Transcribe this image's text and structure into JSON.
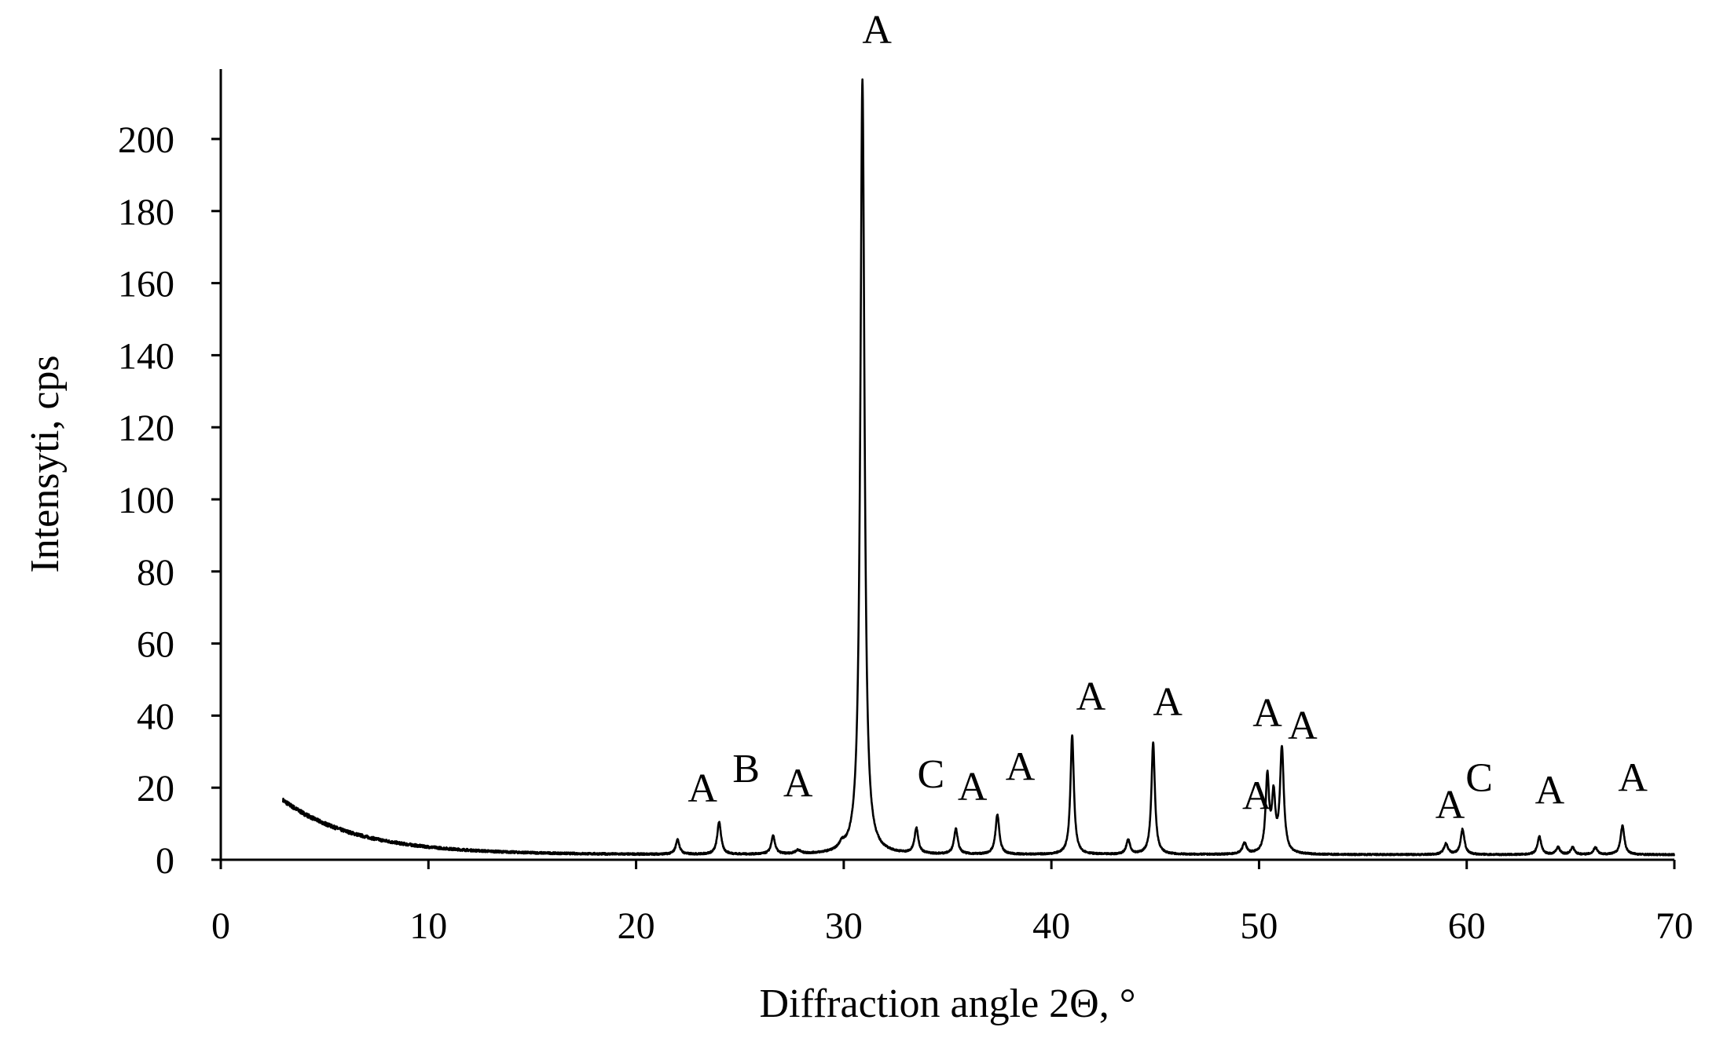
{
  "chart_data": {
    "type": "line",
    "title": "",
    "xlabel": "Diffraction angle 2Θ, °",
    "ylabel": "Intensyti, cps",
    "xlim": [
      0,
      70
    ],
    "ylim": [
      0,
      220
    ],
    "x_ticks": [
      0,
      10,
      20,
      30,
      40,
      50,
      60,
      70
    ],
    "y_ticks": [
      0,
      20,
      40,
      60,
      80,
      100,
      120,
      140,
      160,
      180,
      200
    ],
    "grid": false,
    "legend": "none",
    "line_color": "#000000",
    "background": {
      "start": 3,
      "end": 70,
      "start_value": 16.5,
      "decay_scale": 3.6,
      "floor": 1.4,
      "noise": 0.6
    },
    "peaks": [
      {
        "x": 22.0,
        "height": 4,
        "width": 0.11
      },
      {
        "x": 24.0,
        "height": 9,
        "width": 0.11
      },
      {
        "x": 26.6,
        "height": 5,
        "width": 0.11
      },
      {
        "x": 27.8,
        "height": 1,
        "width": 0.15
      },
      {
        "x": 29.9,
        "height": 1.5,
        "width": 0.15
      },
      {
        "x": 30.9,
        "height": 215,
        "width": 0.12
      },
      {
        "x": 33.5,
        "height": 7,
        "width": 0.11
      },
      {
        "x": 35.4,
        "height": 7,
        "width": 0.11
      },
      {
        "x": 37.4,
        "height": 11,
        "width": 0.11
      },
      {
        "x": 41.0,
        "height": 33,
        "width": 0.1
      },
      {
        "x": 43.7,
        "height": 4,
        "width": 0.11
      },
      {
        "x": 44.9,
        "height": 31,
        "width": 0.1
      },
      {
        "x": 49.3,
        "height": 3,
        "width": 0.12
      },
      {
        "x": 50.4,
        "height": 21,
        "width": 0.1
      },
      {
        "x": 50.7,
        "height": 15,
        "width": 0.1
      },
      {
        "x": 51.1,
        "height": 29,
        "width": 0.11
      },
      {
        "x": 59.0,
        "height": 3,
        "width": 0.12
      },
      {
        "x": 59.8,
        "height": 7,
        "width": 0.11
      },
      {
        "x": 63.5,
        "height": 5,
        "width": 0.11
      },
      {
        "x": 64.4,
        "height": 2,
        "width": 0.11
      },
      {
        "x": 65.1,
        "height": 2,
        "width": 0.11
      },
      {
        "x": 66.2,
        "height": 2,
        "width": 0.11
      },
      {
        "x": 67.5,
        "height": 8,
        "width": 0.11
      }
    ],
    "annotations": [
      {
        "text": "A",
        "x": 23.2,
        "y": 20
      },
      {
        "text": "B",
        "x": 25.3,
        "y": 25.5
      },
      {
        "text": "A",
        "x": 27.8,
        "y": 21.5
      },
      {
        "text": "A",
        "x": 31.6,
        "y": 230.5
      },
      {
        "text": "C",
        "x": 34.2,
        "y": 24
      },
      {
        "text": "A",
        "x": 36.2,
        "y": 20.5
      },
      {
        "text": "A",
        "x": 38.5,
        "y": 26
      },
      {
        "text": "A",
        "x": 41.9,
        "y": 45.5
      },
      {
        "text": "A",
        "x": 45.6,
        "y": 44
      },
      {
        "text": "A",
        "x": 50.4,
        "y": 41
      },
      {
        "text": "A",
        "x": 52.1,
        "y": 37.5
      },
      {
        "text": "A",
        "x": 49.9,
        "y": 18
      },
      {
        "text": "A",
        "x": 59.2,
        "y": 15.5
      },
      {
        "text": "C",
        "x": 60.6,
        "y": 23
      },
      {
        "text": "A",
        "x": 64.0,
        "y": 19.5
      },
      {
        "text": "A",
        "x": 68.0,
        "y": 23
      }
    ]
  }
}
